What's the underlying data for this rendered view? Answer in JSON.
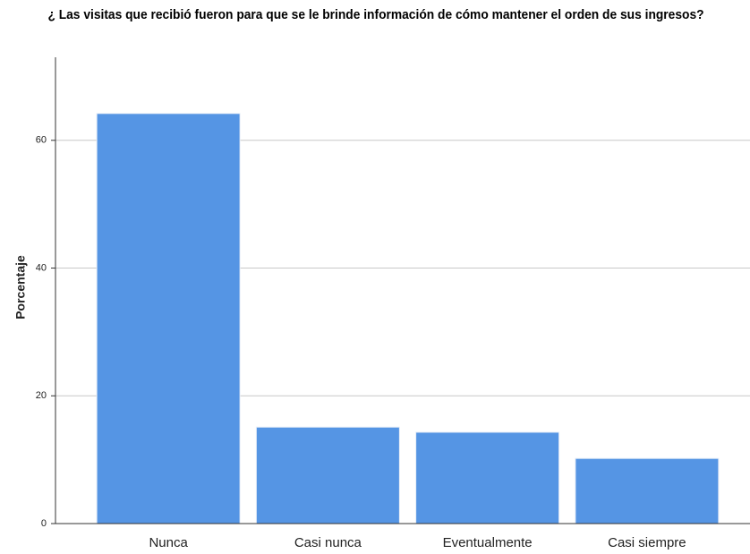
{
  "chart_data": {
    "type": "bar",
    "title": "¿ Las visitas que recibió fueron para que se le brinde información de cómo mantener el orden de sus ingresos?",
    "y_label": "Porcentaje",
    "categories": [
      "Nunca",
      "Casi nunca",
      "Eventualmente",
      "Casi siempre"
    ],
    "values": [
      64.2,
      15.1,
      14.3,
      10.2
    ],
    "color": "#5595e4",
    "ylim": [
      0,
      73
    ],
    "yticks": [
      0,
      20,
      40,
      60
    ],
    "grid": true
  }
}
